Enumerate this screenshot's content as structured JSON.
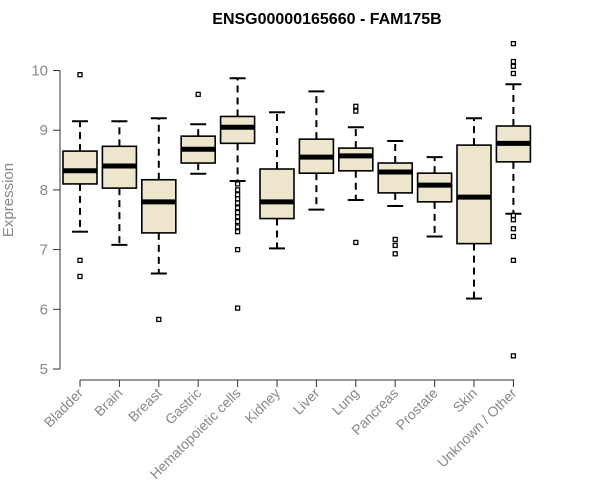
{
  "chart_data": {
    "type": "box",
    "title": "ENSG00000165660 - FAM175B",
    "ylabel": "Expression",
    "xlabel": "",
    "ylim": [
      5,
      10.5
    ],
    "yticks": [
      5,
      6,
      7,
      8,
      9,
      10
    ],
    "grid": false,
    "box_fill": "#ede6cd",
    "categories": [
      "Bladder",
      "Brain",
      "Breast",
      "Gastric",
      "Hematopoietic cells",
      "Kidney",
      "Liver",
      "Lung",
      "Pancreas",
      "Prostate",
      "Skin",
      "Unknown / Other"
    ],
    "boxes": [
      {
        "q1": 8.1,
        "median": 8.32,
        "q3": 8.65,
        "whisker_low": 7.3,
        "whisker_high": 9.15,
        "outliers": [
          9.93,
          6.82,
          6.55
        ]
      },
      {
        "q1": 8.03,
        "median": 8.4,
        "q3": 8.73,
        "whisker_low": 7.08,
        "whisker_high": 9.15,
        "outliers": []
      },
      {
        "q1": 7.28,
        "median": 7.8,
        "q3": 8.17,
        "whisker_low": 6.6,
        "whisker_high": 9.2,
        "outliers": [
          5.83
        ]
      },
      {
        "q1": 8.45,
        "median": 8.68,
        "q3": 8.9,
        "whisker_low": 8.27,
        "whisker_high": 9.1,
        "outliers": [
          9.6
        ]
      },
      {
        "q1": 8.78,
        "median": 9.05,
        "q3": 9.23,
        "whisker_low": 8.15,
        "whisker_high": 9.87,
        "outliers": [
          8.1,
          8.0,
          7.92,
          7.85,
          7.78,
          7.7,
          7.62,
          7.55,
          7.47,
          7.38,
          7.3,
          7.0,
          6.02
        ]
      },
      {
        "q1": 7.52,
        "median": 7.8,
        "q3": 8.35,
        "whisker_low": 7.02,
        "whisker_high": 9.3,
        "outliers": []
      },
      {
        "q1": 8.28,
        "median": 8.55,
        "q3": 8.85,
        "whisker_low": 7.67,
        "whisker_high": 9.65,
        "outliers": []
      },
      {
        "q1": 8.32,
        "median": 8.57,
        "q3": 8.7,
        "whisker_low": 7.83,
        "whisker_high": 9.05,
        "outliers": [
          9.4,
          9.32,
          7.12
        ]
      },
      {
        "q1": 7.95,
        "median": 8.3,
        "q3": 8.45,
        "whisker_low": 7.73,
        "whisker_high": 8.82,
        "outliers": [
          7.17,
          7.07,
          6.93
        ]
      },
      {
        "q1": 7.8,
        "median": 8.08,
        "q3": 8.28,
        "whisker_low": 7.22,
        "whisker_high": 8.55,
        "outliers": []
      },
      {
        "q1": 7.1,
        "median": 7.88,
        "q3": 8.75,
        "whisker_low": 6.18,
        "whisker_high": 9.2,
        "outliers": []
      },
      {
        "q1": 8.47,
        "median": 8.78,
        "q3": 9.07,
        "whisker_low": 7.6,
        "whisker_high": 9.77,
        "outliers": [
          10.45,
          10.15,
          10.07,
          9.95,
          7.57,
          7.5,
          7.35,
          7.22,
          6.82,
          5.22
        ]
      }
    ]
  }
}
